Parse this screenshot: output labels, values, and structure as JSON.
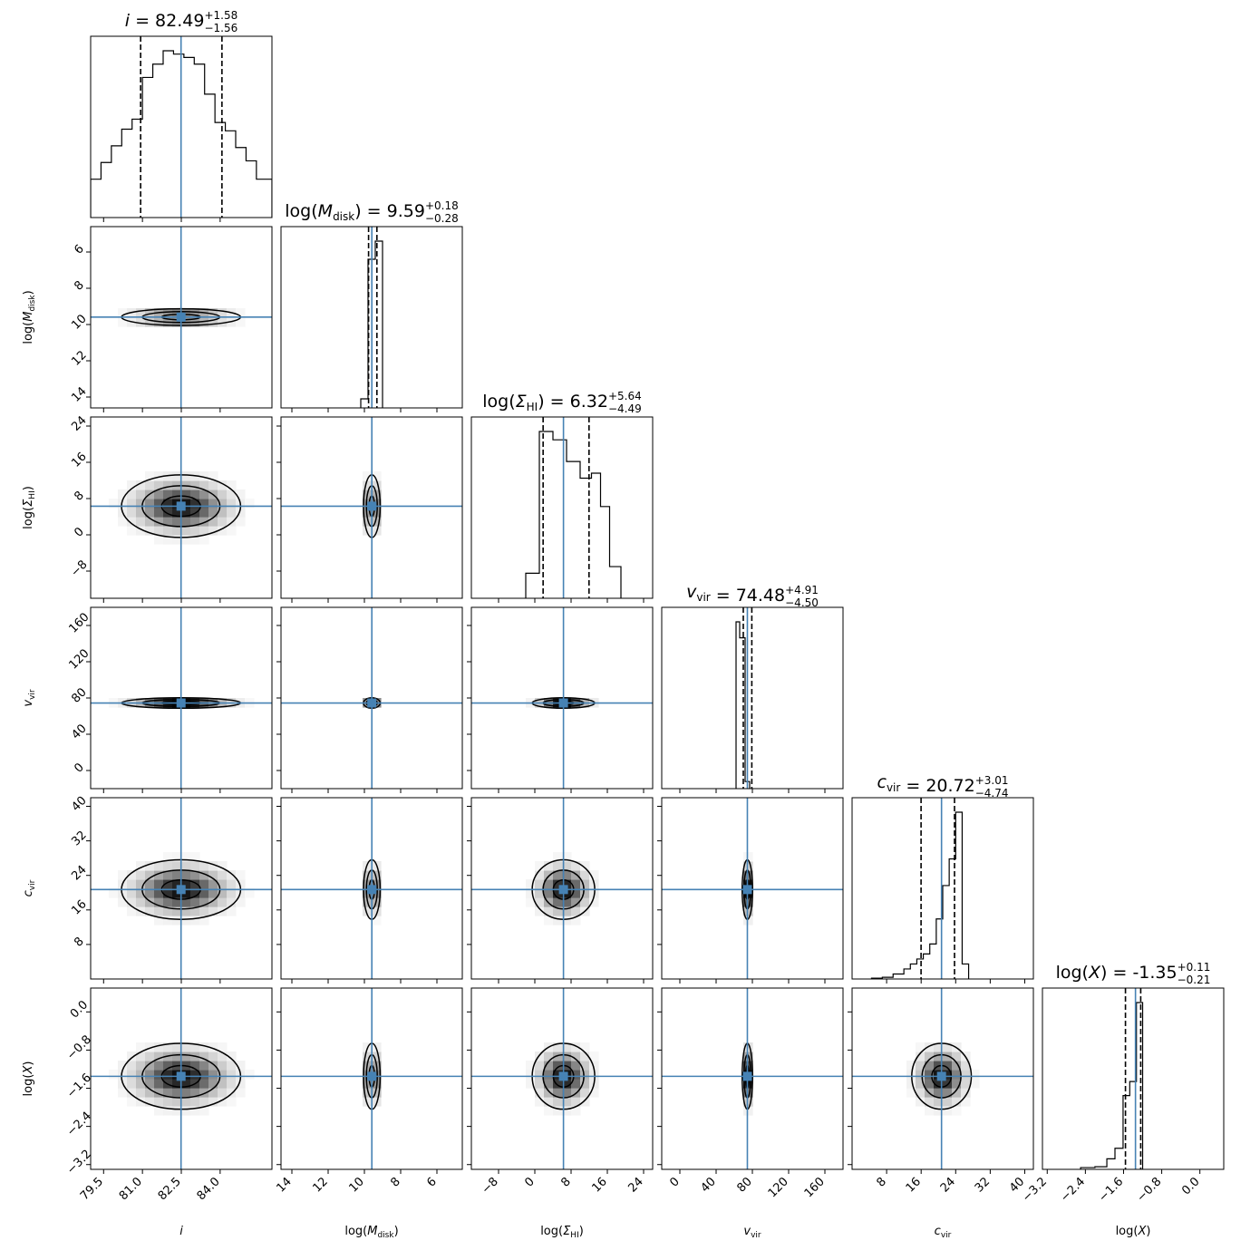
{
  "chart_data": {
    "type": "corner",
    "parameters": [
      {
        "label": "i",
        "label_sub": "",
        "label_prefix": "",
        "label_suffix": "",
        "value": 82.49,
        "upper": "+1.58",
        "lower": "−1.56",
        "range": [
          79.0,
          86.0
        ],
        "ticks": [
          79.5,
          81.0,
          82.5,
          84.0
        ],
        "tick_labels": [
          "79.5",
          "81.0",
          "82.5",
          "84.0"
        ],
        "reversed": false,
        "q_low": 80.93,
        "q_high": 84.07,
        "width": 1.0
      },
      {
        "label": "M",
        "label_sub": "disk",
        "label_prefix": "log(",
        "label_suffix": ")",
        "value": 9.59,
        "upper": "+0.18",
        "lower": "−0.28",
        "range": [
          4.6,
          14.6
        ],
        "ticks": [
          14,
          12,
          10,
          8,
          6
        ],
        "tick_labels": [
          "14",
          "12",
          "10",
          "8",
          "6"
        ],
        "reversed": true,
        "q_low": 9.31,
        "q_high": 9.77,
        "width": 0.2
      },
      {
        "label": "Σ",
        "label_sub": "HI",
        "label_prefix": "log(",
        "label_suffix": ")",
        "value": 6.32,
        "upper": "+5.64",
        "lower": "−4.49",
        "range": [
          -14,
          26
        ],
        "ticks": [
          -8,
          0,
          8,
          16,
          24
        ],
        "tick_labels": [
          "−8",
          "0",
          "8",
          "16",
          "24"
        ],
        "reversed": false,
        "q_low": 1.83,
        "q_high": 11.96,
        "width": 3.0
      },
      {
        "label": "v",
        "label_sub": "vir",
        "label_prefix": "",
        "label_suffix": "",
        "value": 74.48,
        "upper": "+4.91",
        "lower": "−4.50",
        "range": [
          -20,
          180
        ],
        "ticks": [
          0,
          40,
          80,
          120,
          160
        ],
        "tick_labels": [
          "0",
          "40",
          "80",
          "120",
          "160"
        ],
        "reversed": false,
        "q_low": 69.98,
        "q_high": 79.39,
        "width": 2.5
      },
      {
        "label": "c",
        "label_sub": "vir",
        "label_prefix": "",
        "label_suffix": "",
        "value": 20.72,
        "upper": "+3.01",
        "lower": "−4.74",
        "range": [
          0,
          42
        ],
        "ticks": [
          8,
          16,
          24,
          32,
          40
        ],
        "tick_labels": [
          "8",
          "16",
          "24",
          "32",
          "40"
        ],
        "reversed": false,
        "q_low": 15.98,
        "q_high": 23.73,
        "width": 3.0
      },
      {
        "label": "X",
        "label_sub": "",
        "label_prefix": "log(",
        "label_suffix": ")",
        "value": -1.35,
        "upper": "+0.11",
        "lower": "−0.21",
        "range": [
          -3.3,
          0.5
        ],
        "ticks": [
          -3.2,
          -2.4,
          -1.6,
          -0.8,
          0.0
        ],
        "tick_labels": [
          "−3.2",
          "−2.4",
          "−1.6",
          "−0.8",
          "0.0"
        ],
        "reversed": false,
        "q_low": -1.56,
        "q_high": -1.24,
        "width": 0.3
      }
    ],
    "histograms": [
      [
        0.23,
        0.33,
        0.43,
        0.53,
        0.59,
        0.84,
        0.92,
        1.0,
        0.98,
        0.96,
        0.92,
        0.74,
        0.57,
        0.52,
        0.42,
        0.34,
        0.23
      ],
      [
        0.92,
        0.82,
        0.05
      ],
      [
        0.15,
        1.0,
        0.95,
        0.82,
        0.72,
        0.75,
        0.55,
        0.19
      ],
      [
        0.94,
        0.85,
        0.04
      ],
      [
        0.005,
        0.01,
        0.03,
        0.06,
        0.09,
        0.12,
        0.15,
        0.21,
        0.36,
        0.56,
        0.72,
        1.0,
        0.09
      ],
      [
        0.01,
        0.015,
        0.06,
        0.12,
        0.42,
        0.5,
        0.95
      ]
    ],
    "histogram_edges": [
      [
        79.0,
        79.4,
        79.8,
        80.2,
        80.6,
        81.0,
        81.4,
        81.8,
        82.2,
        82.6,
        83.0,
        83.4,
        83.8,
        84.2,
        84.6,
        85.0,
        85.4,
        86.0
      ],
      [
        9.0,
        9.4,
        9.8,
        10.2
      ],
      [
        -2.0,
        1.0,
        4.0,
        7.0,
        10.0,
        12.5,
        14.5,
        16.5,
        19.0
      ],
      [
        62.0,
        66.0,
        72.0,
        77.0
      ],
      [
        4.5,
        7.0,
        9.5,
        12.0,
        13.5,
        15.0,
        16.5,
        18.0,
        19.5,
        21.0,
        22.5,
        24.0,
        25.5,
        27.0
      ],
      [
        -2.5,
        -2.2,
        -1.95,
        -1.78,
        -1.61,
        -1.47,
        -1.33,
        -1.2
      ]
    ],
    "histogram_ranges": [
      [
        79.0,
        86.0
      ],
      [
        4.6,
        14.6
      ],
      [
        -14,
        26
      ],
      [
        -20,
        180
      ],
      [
        0,
        42
      ],
      [
        -3.3,
        0.5
      ]
    ]
  }
}
